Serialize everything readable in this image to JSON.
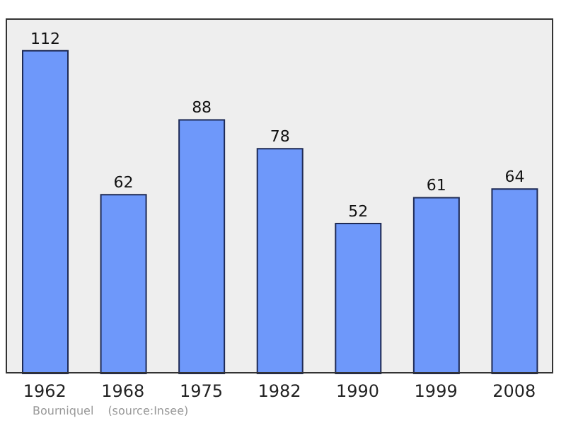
{
  "chart_data": {
    "type": "bar",
    "categories": [
      "1962",
      "1968",
      "1975",
      "1982",
      "1990",
      "1999",
      "2008"
    ],
    "values": [
      112,
      62,
      88,
      78,
      52,
      61,
      64
    ],
    "color": "#6e98fa",
    "data_labels": true,
    "annotations": [
      "Bourniquel",
      "(source:Insee)"
    ]
  }
}
